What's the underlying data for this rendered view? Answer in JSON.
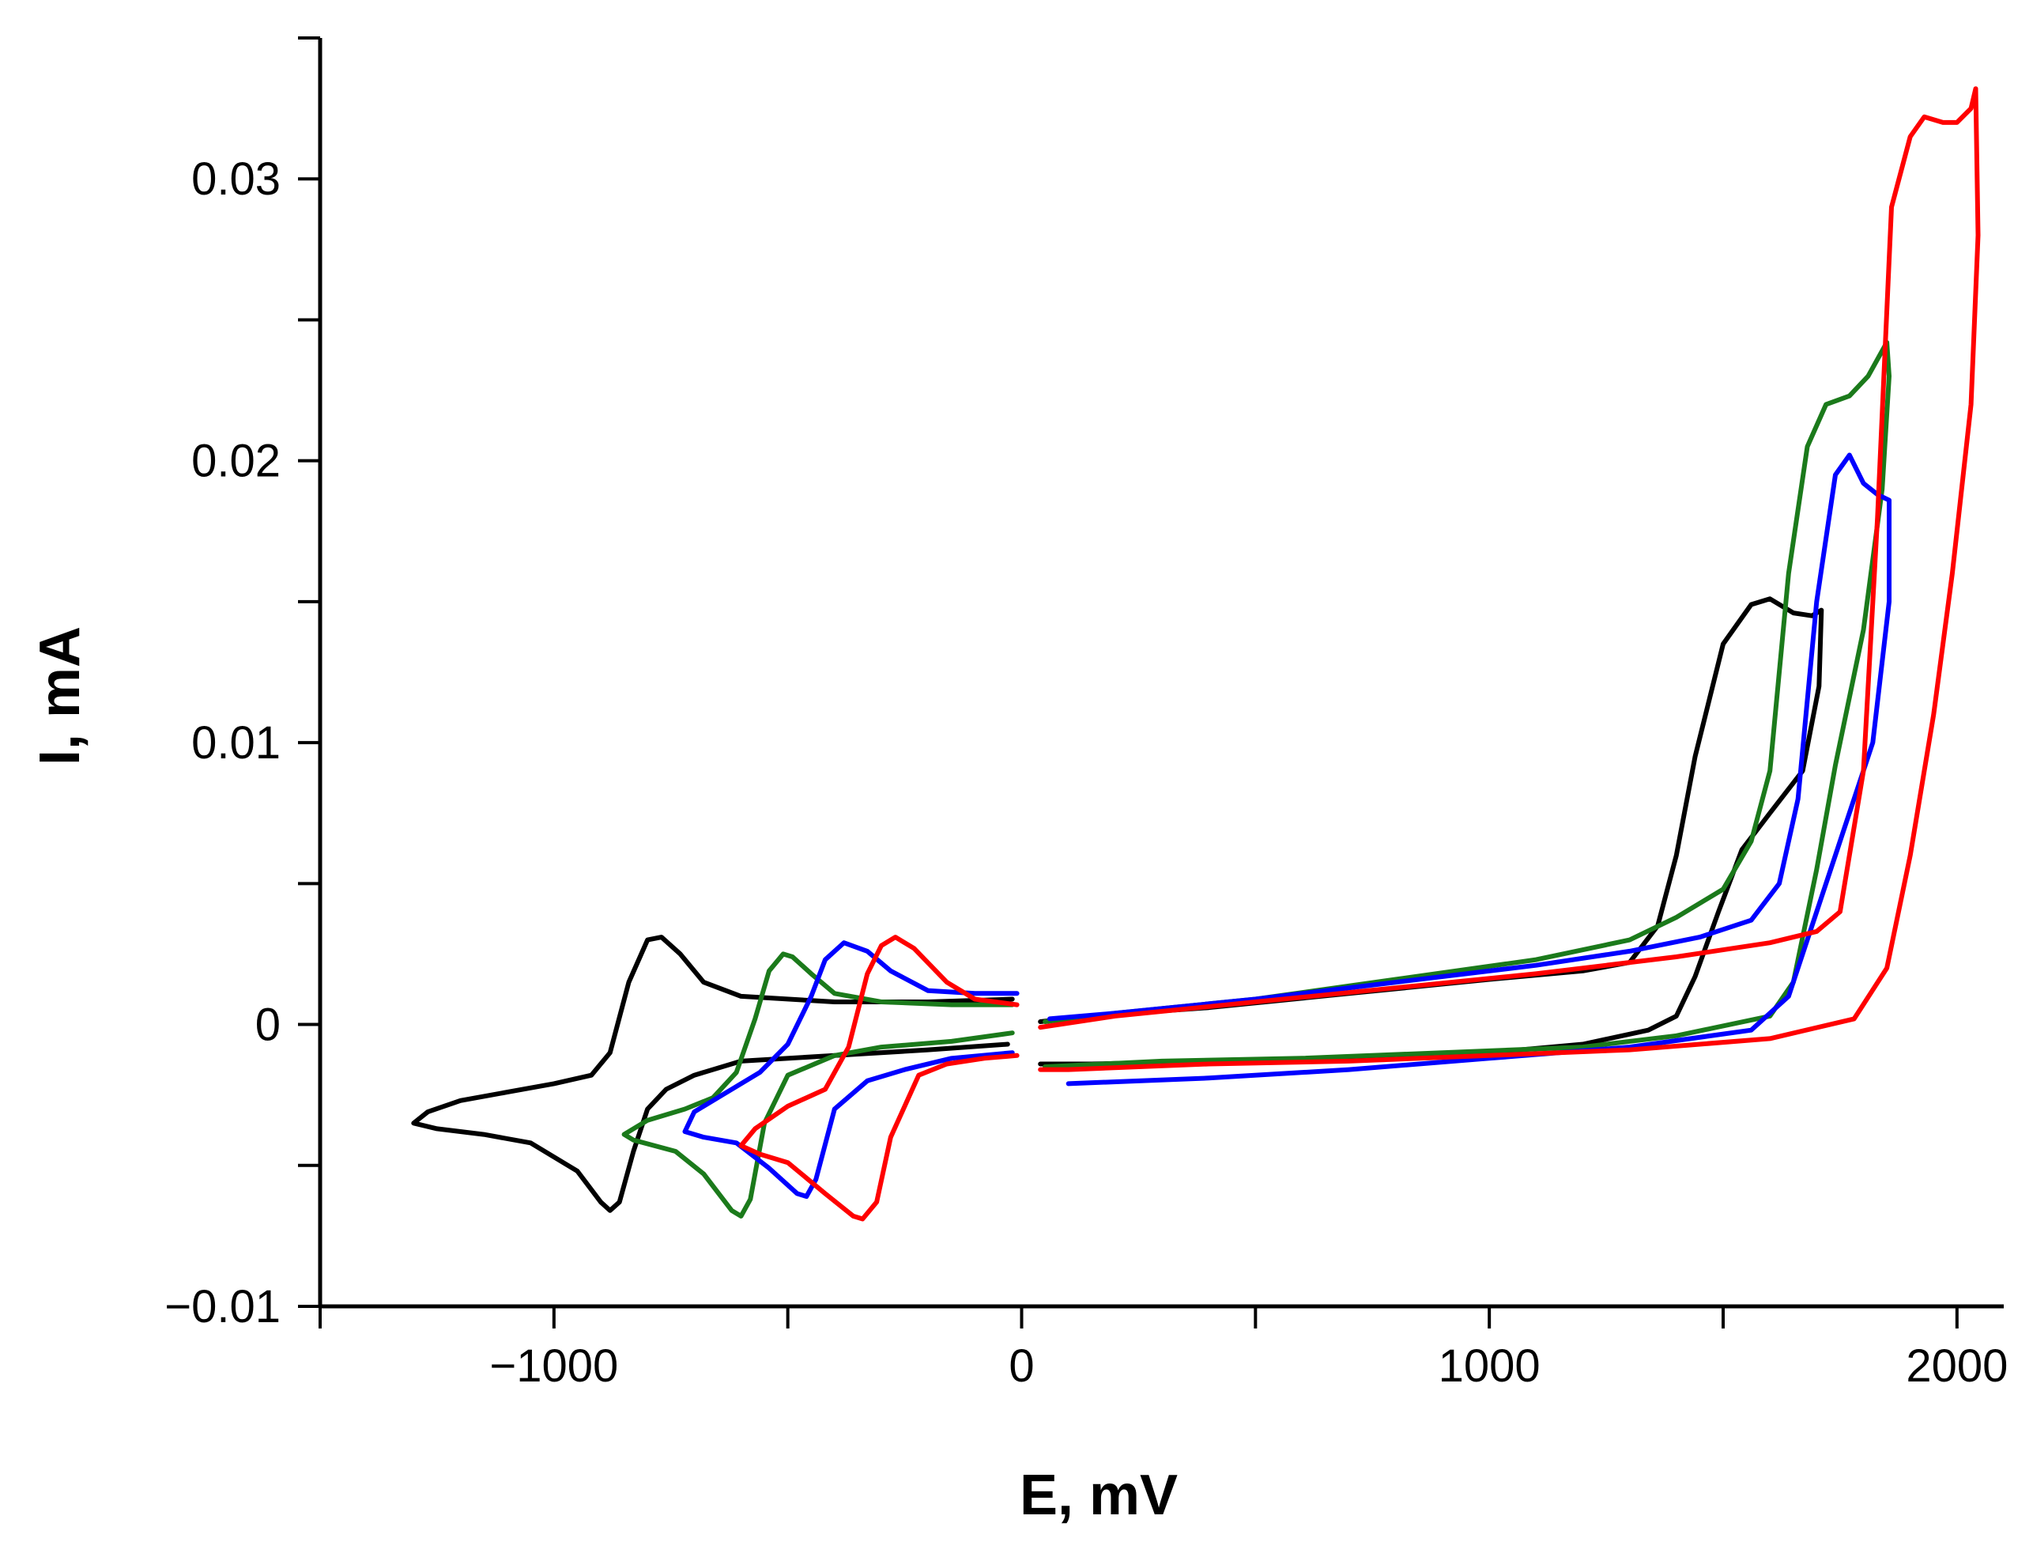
{
  "chart_data": {
    "type": "line",
    "title": "",
    "xlabel": "E, mV",
    "ylabel": "I, mA",
    "xlim": [
      -1500,
      2100
    ],
    "ylim": [
      -0.01,
      0.035
    ],
    "grid": false,
    "x_ticks": [
      {
        "value": -1000,
        "label": "−1000"
      },
      {
        "value": 0,
        "label": "0"
      },
      {
        "value": 1000,
        "label": "1000"
      },
      {
        "value": 2000,
        "label": "2000"
      }
    ],
    "x_minor_ticks": [
      -1500,
      -500,
      500,
      1500
    ],
    "y_ticks": [
      {
        "value": -0.01,
        "label": "−0.01"
      },
      {
        "value": 0,
        "label": "0"
      },
      {
        "value": 0.01,
        "label": "0.01"
      },
      {
        "value": 0.02,
        "label": "0.02"
      },
      {
        "value": 0.03,
        "label": "0.03"
      }
    ],
    "y_minor_ticks": [
      -0.005,
      0.005,
      0.015,
      0.025,
      0.035
    ],
    "series": [
      {
        "name": "black",
        "color": "#000000",
        "segments": [
          [
            [
              -20,
              0.0009
            ],
            [
              -200,
              0.0008
            ],
            [
              -400,
              0.0008
            ],
            [
              -600,
              0.001
            ],
            [
              -680,
              0.0015
            ],
            [
              -730,
              0.0025
            ],
            [
              -770,
              0.0031
            ],
            [
              -800,
              0.003
            ],
            [
              -840,
              0.0015
            ],
            [
              -880,
              -0.001
            ],
            [
              -920,
              -0.0018
            ],
            [
              -1000,
              -0.0021
            ],
            [
              -1100,
              -0.0024
            ],
            [
              -1200,
              -0.0027
            ],
            [
              -1270,
              -0.0031
            ],
            [
              -1300,
              -0.0035
            ],
            [
              -1250,
              -0.0037
            ],
            [
              -1150,
              -0.0039
            ],
            [
              -1050,
              -0.0042
            ],
            [
              -950,
              -0.0052
            ],
            [
              -900,
              -0.0063
            ],
            [
              -880,
              -0.0066
            ],
            [
              -860,
              -0.0063
            ],
            [
              -830,
              -0.0045
            ],
            [
              -800,
              -0.003
            ],
            [
              -760,
              -0.0023
            ],
            [
              -700,
              -0.0018
            ],
            [
              -600,
              -0.0013
            ],
            [
              -400,
              -0.0011
            ],
            [
              -200,
              -0.0009
            ],
            [
              -30,
              -0.0007
            ]
          ],
          [
            [
              40,
              0.0001
            ],
            [
              150,
              0.0003
            ],
            [
              400,
              0.0006
            ],
            [
              700,
              0.0011
            ],
            [
              1000,
              0.0016
            ],
            [
              1200,
              0.0019
            ],
            [
              1300,
              0.0022
            ],
            [
              1360,
              0.0035
            ],
            [
              1400,
              0.006
            ],
            [
              1440,
              0.0095
            ],
            [
              1500,
              0.0135
            ],
            [
              1560,
              0.0149
            ],
            [
              1600,
              0.0151
            ],
            [
              1650,
              0.0146
            ],
            [
              1690,
              0.0145
            ],
            [
              1710,
              0.0147
            ],
            [
              1705,
              0.012
            ],
            [
              1670,
              0.009
            ],
            [
              1600,
              0.0075
            ],
            [
              1540,
              0.0062
            ],
            [
              1490,
              0.004
            ],
            [
              1440,
              0.0017
            ],
            [
              1400,
              0.0003
            ],
            [
              1340,
              -0.0002
            ],
            [
              1200,
              -0.0007
            ],
            [
              1000,
              -0.001
            ],
            [
              700,
              -0.0012
            ],
            [
              400,
              -0.0013
            ],
            [
              150,
              -0.0014
            ],
            [
              40,
              -0.0014
            ]
          ]
        ]
      },
      {
        "name": "green",
        "color": "#1b7a1b",
        "segments": [
          [
            [
              -20,
              0.0007
            ],
            [
              -150,
              0.0007
            ],
            [
              -300,
              0.0008
            ],
            [
              -400,
              0.0011
            ],
            [
              -450,
              0.0018
            ],
            [
              -490,
              0.0024
            ],
            [
              -510,
              0.0025
            ],
            [
              -540,
              0.0019
            ],
            [
              -570,
              0.0002
            ],
            [
              -610,
              -0.0017
            ],
            [
              -660,
              -0.0026
            ],
            [
              -720,
              -0.003
            ],
            [
              -800,
              -0.0034
            ],
            [
              -850,
              -0.0039
            ],
            [
              -830,
              -0.0041
            ],
            [
              -740,
              -0.0045
            ],
            [
              -680,
              -0.0053
            ],
            [
              -620,
              -0.0066
            ],
            [
              -600,
              -0.0068
            ],
            [
              -580,
              -0.0062
            ],
            [
              -550,
              -0.0035
            ],
            [
              -500,
              -0.0018
            ],
            [
              -400,
              -0.0011
            ],
            [
              -300,
              -0.0008
            ],
            [
              -150,
              -0.0006
            ],
            [
              -20,
              -0.0003
            ]
          ],
          [
            [
              50,
              0.0001
            ],
            [
              200,
              0.0004
            ],
            [
              500,
              0.0009
            ],
            [
              800,
              0.0016
            ],
            [
              1100,
              0.0023
            ],
            [
              1300,
              0.003
            ],
            [
              1400,
              0.0038
            ],
            [
              1500,
              0.0048
            ],
            [
              1560,
              0.0065
            ],
            [
              1600,
              0.009
            ],
            [
              1640,
              0.016
            ],
            [
              1680,
              0.0205
            ],
            [
              1720,
              0.022
            ],
            [
              1770,
              0.0223
            ],
            [
              1810,
              0.023
            ],
            [
              1850,
              0.0242
            ],
            [
              1855,
              0.023
            ],
            [
              1840,
              0.019
            ],
            [
              1800,
              0.014
            ],
            [
              1740,
              0.0092
            ],
            [
              1700,
              0.0055
            ],
            [
              1650,
              0.0015
            ],
            [
              1600,
              0.0003
            ],
            [
              1400,
              -0.0004
            ],
            [
              1200,
              -0.0008
            ],
            [
              900,
              -0.001
            ],
            [
              600,
              -0.0012
            ],
            [
              300,
              -0.0013
            ],
            [
              50,
              -0.0015
            ]
          ]
        ]
      },
      {
        "name": "blue",
        "color": "#0000ff",
        "segments": [
          [
            [
              -10,
              0.0011
            ],
            [
              -100,
              0.0011
            ],
            [
              -200,
              0.0012
            ],
            [
              -280,
              0.0019
            ],
            [
              -330,
              0.0026
            ],
            [
              -380,
              0.0029
            ],
            [
              -420,
              0.0023
            ],
            [
              -450,
              0.001
            ],
            [
              -500,
              -0.0007
            ],
            [
              -560,
              -0.0017
            ],
            [
              -640,
              -0.0025
            ],
            [
              -700,
              -0.0031
            ],
            [
              -720,
              -0.0038
            ],
            [
              -680,
              -0.004
            ],
            [
              -610,
              -0.0042
            ],
            [
              -540,
              -0.0051
            ],
            [
              -480,
              -0.006
            ],
            [
              -460,
              -0.0061
            ],
            [
              -440,
              -0.0055
            ],
            [
              -400,
              -0.003
            ],
            [
              -330,
              -0.002
            ],
            [
              -250,
              -0.0016
            ],
            [
              -150,
              -0.0012
            ],
            [
              -20,
              -0.001
            ]
          ],
          [
            [
              60,
              0.0002
            ],
            [
              200,
              0.0004
            ],
            [
              500,
              0.0009
            ],
            [
              800,
              0.0015
            ],
            [
              1100,
              0.0021
            ],
            [
              1300,
              0.0026
            ],
            [
              1450,
              0.0031
            ],
            [
              1560,
              0.0037
            ],
            [
              1620,
              0.005
            ],
            [
              1660,
              0.008
            ],
            [
              1700,
              0.015
            ],
            [
              1740,
              0.0195
            ],
            [
              1770,
              0.0202
            ],
            [
              1800,
              0.0192
            ],
            [
              1830,
              0.0188
            ],
            [
              1855,
              0.0186
            ],
            [
              1855,
              0.015
            ],
            [
              1820,
              0.01
            ],
            [
              1760,
              0.007
            ],
            [
              1700,
              0.004
            ],
            [
              1640,
              0.001
            ],
            [
              1560,
              -0.0002
            ],
            [
              1300,
              -0.0008
            ],
            [
              1000,
              -0.0012
            ],
            [
              700,
              -0.0016
            ],
            [
              400,
              -0.0019
            ],
            [
              100,
              -0.0021
            ]
          ]
        ]
      },
      {
        "name": "red",
        "color": "#ff0000",
        "segments": [
          [
            [
              -10,
              0.0007
            ],
            [
              -100,
              0.0009
            ],
            [
              -160,
              0.0015
            ],
            [
              -230,
              0.0027
            ],
            [
              -270,
              0.0031
            ],
            [
              -300,
              0.0028
            ],
            [
              -330,
              0.0018
            ],
            [
              -370,
              -0.0008
            ],
            [
              -420,
              -0.0023
            ],
            [
              -500,
              -0.0029
            ],
            [
              -570,
              -0.0037
            ],
            [
              -600,
              -0.0043
            ],
            [
              -560,
              -0.0046
            ],
            [
              -500,
              -0.0049
            ],
            [
              -420,
              -0.006
            ],
            [
              -360,
              -0.0068
            ],
            [
              -340,
              -0.0069
            ],
            [
              -310,
              -0.0063
            ],
            [
              -280,
              -0.004
            ],
            [
              -220,
              -0.0018
            ],
            [
              -160,
              -0.0014
            ],
            [
              -80,
              -0.0012
            ],
            [
              -10,
              -0.0011
            ]
          ],
          [
            [
              40,
              -0.0001
            ],
            [
              200,
              0.0003
            ],
            [
              500,
              0.0008
            ],
            [
              800,
              0.0013
            ],
            [
              1100,
              0.0018
            ],
            [
              1400,
              0.0024
            ],
            [
              1600,
              0.0029
            ],
            [
              1700,
              0.0033
            ],
            [
              1750,
              0.004
            ],
            [
              1800,
              0.009
            ],
            [
              1830,
              0.018
            ],
            [
              1860,
              0.029
            ],
            [
              1900,
              0.0315
            ],
            [
              1930,
              0.0322
            ],
            [
              1970,
              0.032
            ],
            [
              2000,
              0.032
            ],
            [
              2030,
              0.0325
            ],
            [
              2040,
              0.0332
            ],
            [
              2045,
              0.028
            ],
            [
              2030,
              0.022
            ],
            [
              1990,
              0.016
            ],
            [
              1950,
              0.011
            ],
            [
              1900,
              0.006
            ],
            [
              1850,
              0.002
            ],
            [
              1780,
              0.0002
            ],
            [
              1600,
              -0.0005
            ],
            [
              1300,
              -0.0009
            ],
            [
              1000,
              -0.0011
            ],
            [
              700,
              -0.0013
            ],
            [
              400,
              -0.0014
            ],
            [
              100,
              -0.0016
            ],
            [
              40,
              -0.0016
            ]
          ]
        ]
      }
    ]
  }
}
